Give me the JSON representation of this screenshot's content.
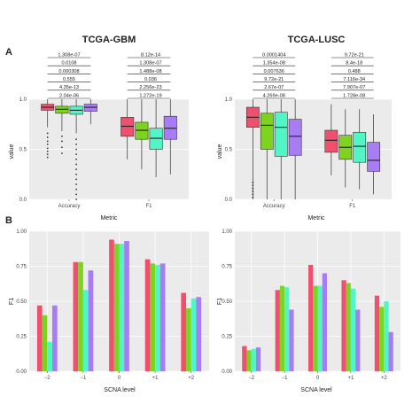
{
  "panel_labels": {
    "a": "A",
    "b": "B"
  },
  "colors": {
    "c1": "#f0506e",
    "c2": "#7ed321",
    "c3": "#52f5c6",
    "c4": "#a77cf5"
  },
  "chart_data": [
    {
      "type": "box",
      "title": "TCGA-GBM",
      "xlabel": "Metric",
      "ylabel": "value",
      "categories": [
        "Accuracy",
        "F1"
      ],
      "ylim": [
        0,
        1
      ],
      "yticks": [
        0.0,
        0.5,
        1.0
      ],
      "ytick_labels": [
        "0.0",
        "0.5",
        "1.0"
      ],
      "boxes": [
        [
          {
            "min": 0.72,
            "q1": 0.89,
            "median": 0.92,
            "q3": 0.95,
            "max": 1.0
          },
          {
            "min": 0.68,
            "q1": 0.86,
            "median": 0.9,
            "q3": 0.93,
            "max": 1.0
          },
          {
            "min": 0.66,
            "q1": 0.85,
            "median": 0.89,
            "q3": 0.93,
            "max": 1.0
          },
          {
            "min": 0.75,
            "q1": 0.88,
            "median": 0.92,
            "q3": 0.95,
            "max": 1.0
          }
        ],
        [
          {
            "min": 0.4,
            "q1": 0.63,
            "median": 0.73,
            "q3": 0.82,
            "max": 1.0
          },
          {
            "min": 0.3,
            "q1": 0.6,
            "median": 0.69,
            "q3": 0.77,
            "max": 1.0
          },
          {
            "min": 0.22,
            "q1": 0.5,
            "median": 0.61,
            "q3": 0.71,
            "max": 1.0
          },
          {
            "min": 0.25,
            "q1": 0.6,
            "median": 0.71,
            "q3": 0.83,
            "max": 1.0
          }
        ]
      ],
      "outliers": [
        [
          [
            0.42,
            0.45,
            0.48,
            0.51,
            0.55,
            0.58,
            0.62,
            0.66
          ],
          [
            0.46,
            0.52,
            0.58,
            0.63
          ],
          [
            0.0,
            0.05,
            0.1,
            0.15,
            0.2,
            0.25,
            0.3,
            0.35,
            0.4,
            0.45,
            0.5,
            0.55,
            0.6
          ],
          []
        ],
        [
          [],
          [],
          [],
          []
        ]
      ],
      "pvalues": [
        {
          "label": "2.04e-06",
          "left": 0,
          "right": 1
        },
        {
          "label": "4.35e-13",
          "left": 0,
          "right": 2
        },
        {
          "label": "0.555",
          "left": 0,
          "right": 3
        },
        {
          "label": "0.000308",
          "left": 0,
          "right": 4
        },
        {
          "label": "0.0108",
          "left": 0,
          "right": 5
        },
        {
          "label": "1.308e-07",
          "left": 0,
          "right": 6
        },
        {
          "label": "1.272e-19",
          "left": 4,
          "right": 5
        },
        {
          "label": "2.256e-23",
          "left": 4,
          "right": 6
        },
        {
          "label": "0.036",
          "left": 4,
          "right": 7
        },
        {
          "label": "1.488e-08",
          "left": 5,
          "right": 6
        },
        {
          "label": "1.308e-07",
          "left": 5,
          "right": 7
        },
        {
          "label": "8.12e-14",
          "left": 6,
          "right": 7
        }
      ]
    },
    {
      "type": "box",
      "title": "TCGA-LUSC",
      "xlabel": "Metric",
      "ylabel": "value",
      "categories": [
        "Accuracy",
        "F1"
      ],
      "ylim": [
        0,
        1
      ],
      "yticks": [
        0.0,
        0.5,
        1.0
      ],
      "ytick_labels": [
        "0.0",
        "0.5",
        "1.0"
      ],
      "boxes": [
        [
          {
            "min": 0.0,
            "q1": 0.72,
            "median": 0.82,
            "q3": 0.92,
            "max": 1.0
          },
          {
            "min": 0.0,
            "q1": 0.5,
            "median": 0.74,
            "q3": 0.86,
            "max": 1.0
          },
          {
            "min": 0.0,
            "q1": 0.43,
            "median": 0.72,
            "q3": 0.87,
            "max": 1.0
          },
          {
            "min": 0.0,
            "q1": 0.44,
            "median": 0.63,
            "q3": 0.8,
            "max": 1.0
          }
        ],
        [
          {
            "min": 0.24,
            "q1": 0.47,
            "median": 0.59,
            "q3": 0.69,
            "max": 0.95
          },
          {
            "min": 0.12,
            "q1": 0.4,
            "median": 0.52,
            "q3": 0.64,
            "max": 0.9
          },
          {
            "min": 0.1,
            "q1": 0.37,
            "median": 0.53,
            "q3": 0.67,
            "max": 0.9
          },
          {
            "min": 0.05,
            "q1": 0.28,
            "median": 0.39,
            "q3": 0.57,
            "max": 0.85
          }
        ]
      ],
      "outliers": [
        [
          [
            0.02,
            0.05,
            0.08,
            0.11,
            0.14,
            0.17
          ],
          [],
          [],
          []
        ],
        [
          [],
          [],
          [],
          []
        ]
      ],
      "pvalues": [
        {
          "label": "4.269e-08",
          "left": 0,
          "right": 1
        },
        {
          "label": "2.67e-07",
          "left": 0,
          "right": 2
        },
        {
          "label": "9.72e-21",
          "left": 0,
          "right": 3
        },
        {
          "label": "0.007636",
          "left": 0,
          "right": 4
        },
        {
          "label": "1.354e-08",
          "left": 0,
          "right": 5
        },
        {
          "label": "0.0001404",
          "left": 0,
          "right": 6
        },
        {
          "label": "1.728e-08",
          "left": 4,
          "right": 5
        },
        {
          "label": "7.907e-07",
          "left": 4,
          "right": 6
        },
        {
          "label": "7.116e-34",
          "left": 4,
          "right": 7
        },
        {
          "label": "0.488",
          "left": 5,
          "right": 6
        },
        {
          "label": "8.4e-18",
          "left": 5,
          "right": 7
        },
        {
          "label": "9.72e-21",
          "left": 6,
          "right": 7
        }
      ]
    },
    {
      "type": "bar",
      "title": "",
      "xlabel": "SCNA level",
      "ylabel": "F1",
      "categories": [
        "−2",
        "−1",
        "0",
        "+1",
        "+2"
      ],
      "ylim": [
        0,
        1
      ],
      "yticks": [
        0.0,
        0.25,
        0.5,
        0.75,
        1.0
      ],
      "ytick_labels": [
        "0.00",
        "0.25",
        "0.50",
        "0.75",
        "1.00"
      ],
      "series_values": [
        [
          0.47,
          0.78,
          0.94,
          0.8,
          0.56
        ],
        [
          0.4,
          0.78,
          0.91,
          0.77,
          0.45
        ],
        [
          0.21,
          0.58,
          0.91,
          0.76,
          0.52
        ],
        [
          0.47,
          0.72,
          0.93,
          0.77,
          0.53
        ]
      ]
    },
    {
      "type": "bar",
      "title": "",
      "xlabel": "SCNA level",
      "ylabel": "F1",
      "categories": [
        "−2",
        "−1",
        "0",
        "+1",
        "+2"
      ],
      "ylim": [
        0,
        1
      ],
      "yticks": [
        0.0,
        0.25,
        0.5,
        0.75,
        1.0
      ],
      "ytick_labels": [
        "0.00",
        "0.25",
        "0.50",
        "0.75",
        "1.00"
      ],
      "series_values": [
        [
          0.18,
          0.58,
          0.76,
          0.65,
          0.54
        ],
        [
          0.15,
          0.61,
          0.61,
          0.63,
          0.46
        ],
        [
          0.16,
          0.6,
          0.61,
          0.59,
          0.5
        ],
        [
          0.17,
          0.44,
          0.7,
          0.44,
          0.28
        ]
      ]
    }
  ]
}
